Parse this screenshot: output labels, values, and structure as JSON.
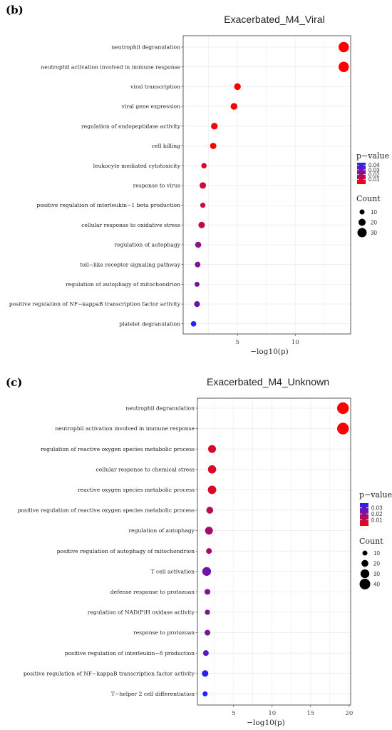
{
  "colors": {
    "low_p": "#ff0000",
    "high_p": "#2222ff",
    "grid": "#ebebeb",
    "border": "#333333"
  },
  "chart_data": [
    {
      "panel": "(b)",
      "type": "scatter",
      "title": "Exacerbated_M4_Viral",
      "xlabel": "−log10(p)",
      "xlim": [
        0.3,
        14.8
      ],
      "xticks": [
        "5",
        "10"
      ],
      "xtick_values": [
        5,
        10
      ],
      "grid": true,
      "legend_position": "right",
      "color_legend": {
        "title": "p−value",
        "min": 0.0,
        "max": 0.045,
        "ticks": [
          "0.04",
          "0.03",
          "0.02",
          "0.01"
        ],
        "tick_values": [
          0.04,
          0.03,
          0.02,
          0.01
        ]
      },
      "size_legend": {
        "title": "Count",
        "labels": [
          "10",
          "20",
          "30"
        ],
        "values": [
          10,
          20,
          30
        ]
      },
      "points": [
        {
          "term": "neutrophil degranulation",
          "x": 14.2,
          "p": 0.0,
          "count": 35
        },
        {
          "term": "neutrophil activation involved in immune response",
          "x": 14.2,
          "p": 0.0,
          "count": 35
        },
        {
          "term": "viral transcription",
          "x": 5.0,
          "p": 0.0005,
          "count": 18
        },
        {
          "term": "viral gene expression",
          "x": 4.7,
          "p": 0.0005,
          "count": 18
        },
        {
          "term": "regulation of endopeptidase activity",
          "x": 3.0,
          "p": 0.001,
          "count": 18
        },
        {
          "term": "cell killing",
          "x": 2.9,
          "p": 0.0012,
          "count": 16
        },
        {
          "term": "leukocyte mediated cytotoxicity",
          "x": 2.1,
          "p": 0.008,
          "count": 12
        },
        {
          "term": "response to virus",
          "x": 2.0,
          "p": 0.01,
          "count": 17
        },
        {
          "term": "positive regulation of interleukin−1 beta production",
          "x": 2.0,
          "p": 0.01,
          "count": 11
        },
        {
          "term": "cellular response to oxidative stress",
          "x": 1.9,
          "p": 0.012,
          "count": 17
        },
        {
          "term": "regulation of autophagy",
          "x": 1.6,
          "p": 0.024,
          "count": 15
        },
        {
          "term": "toll−like receptor signaling pathway",
          "x": 1.55,
          "p": 0.026,
          "count": 13
        },
        {
          "term": "regulation of autophagy of mitochondrion",
          "x": 1.5,
          "p": 0.028,
          "count": 8
        },
        {
          "term": "positive regulation of NF−kappaB transcription factor activity",
          "x": 1.5,
          "p": 0.03,
          "count": 14
        },
        {
          "term": "platelet degranulation",
          "x": 1.2,
          "p": 0.045,
          "count": 12
        }
      ]
    },
    {
      "panel": "(c)",
      "type": "scatter",
      "title": "Exacerbated_M4_Unknown",
      "xlabel": "−log10(p)",
      "xlim": [
        0.3,
        20.2
      ],
      "xticks": [
        "5",
        "10",
        "15",
        "20"
      ],
      "xtick_values": [
        5,
        10,
        15,
        20
      ],
      "grid": true,
      "legend_position": "right",
      "color_legend": {
        "title": "p−value",
        "min": 0.0,
        "max": 0.038,
        "ticks": [
          "0.03",
          "0.02",
          "0.01"
        ],
        "tick_values": [
          0.03,
          0.02,
          0.01
        ]
      },
      "size_legend": {
        "title": "Count",
        "labels": [
          "10",
          "20",
          "30",
          "40"
        ],
        "values": [
          10,
          20,
          30,
          40
        ]
      },
      "points": [
        {
          "term": "neutrophil degranulation",
          "x": 19.2,
          "p": 0.0,
          "count": 45
        },
        {
          "term": "neutrophil activation involved in immune response",
          "x": 19.2,
          "p": 0.0,
          "count": 45
        },
        {
          "term": "regulation of reactive oxygen species metabolic process",
          "x": 2.2,
          "p": 0.006,
          "count": 25
        },
        {
          "term": "cellular response to chemical stress",
          "x": 2.2,
          "p": 0.006,
          "count": 27
        },
        {
          "term": "reactive oxygen species metabolic process",
          "x": 2.2,
          "p": 0.006,
          "count": 28
        },
        {
          "term": "positive regulation of reactive oxygen species metabolic process",
          "x": 1.9,
          "p": 0.012,
          "count": 20
        },
        {
          "term": "regulation of autophagy",
          "x": 1.8,
          "p": 0.015,
          "count": 25
        },
        {
          "term": "positive regulation of autophagy of mitochondrion",
          "x": 1.8,
          "p": 0.016,
          "count": 14
        },
        {
          "term": "T cell activation",
          "x": 1.5,
          "p": 0.024,
          "count": 30
        },
        {
          "term": "defense response to protozoan",
          "x": 1.6,
          "p": 0.022,
          "count": 14
        },
        {
          "term": "regulation of NAD(P)H oxidase activity",
          "x": 1.6,
          "p": 0.022,
          "count": 11
        },
        {
          "term": "response to protozoan",
          "x": 1.6,
          "p": 0.022,
          "count": 14
        },
        {
          "term": "positive regulation of interleukin−8 production",
          "x": 1.4,
          "p": 0.028,
          "count": 14
        },
        {
          "term": "positive regulation of NF−kappaB transcription factor activity",
          "x": 1.3,
          "p": 0.036,
          "count": 18
        },
        {
          "term": "T−helper 2 cell differentiation",
          "x": 1.3,
          "p": 0.038,
          "count": 10
        }
      ]
    }
  ]
}
